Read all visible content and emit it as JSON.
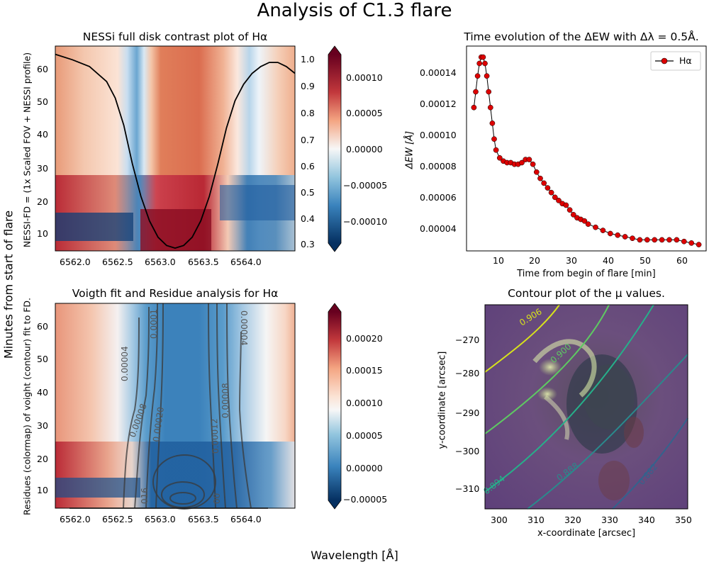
{
  "figure": {
    "suptitle": "Analysis of C1.3 flare",
    "shared_ylabel": "Minutes from start of flare",
    "shared_xlabel": "Wavelength [Å]"
  },
  "chart_data": [
    {
      "id": "contrast",
      "type": "heatmap",
      "title": "NESSi full disk contrast plot of Hα",
      "ylabel": "NESSI-FD = (1x Scaled FOV + NESSI profile)",
      "xlim": [
        6561.6,
        6564.4
      ],
      "ylim": [
        5,
        67
      ],
      "xticks": [
        "6562.0",
        "6562.5",
        "6563.0",
        "6563.5",
        "6564.0"
      ],
      "yticks": [
        "10",
        "20",
        "30",
        "40",
        "50",
        "60"
      ],
      "colormap": "RdBu_r",
      "colorbar_ticks": [
        "0.00010",
        "0.00005",
        "0.00000",
        "−0.00005",
        "−0.00010"
      ],
      "colorbar_range": [
        -0.00013,
        0.00013
      ],
      "profile_axis_ticks": [
        "1.0",
        "0.9",
        "0.8",
        "0.7",
        "0.6",
        "0.5",
        "0.4",
        "0.3"
      ],
      "profile_axis_range": [
        0.28,
        1.03
      ],
      "profile_color": "#000000",
      "profile": {
        "x": [
          6561.6,
          6561.8,
          6562.0,
          6562.2,
          6562.3,
          6562.4,
          6562.5,
          6562.6,
          6562.7,
          6562.8,
          6562.9,
          6563.0,
          6563.1,
          6563.2,
          6563.3,
          6563.4,
          6563.5,
          6563.6,
          6563.7,
          6563.8,
          6563.9,
          6564.0,
          6564.1,
          6564.2,
          6564.3,
          6564.4
        ],
        "y": [
          1.0,
          0.98,
          0.955,
          0.9,
          0.84,
          0.74,
          0.6,
          0.48,
          0.39,
          0.33,
          0.3,
          0.29,
          0.3,
          0.33,
          0.39,
          0.48,
          0.6,
          0.73,
          0.83,
          0.89,
          0.93,
          0.955,
          0.97,
          0.97,
          0.955,
          0.93
        ]
      }
    },
    {
      "id": "ew",
      "type": "scatter",
      "title": "Time evolution of the ΔEW with Δλ = 0.5Å.",
      "xlabel": "Time from begin of flare [min]",
      "ylabel": "ΔEW [Å]",
      "xlim": [
        3,
        68
      ],
      "ylim": [
        2.7e-05,
        0.000157
      ],
      "xticks": [
        "10",
        "20",
        "30",
        "40",
        "50",
        "60"
      ],
      "yticks": [
        "0.00004",
        "0.00006",
        "0.00008",
        "0.00010",
        "0.00012",
        "0.00014"
      ],
      "legend": {
        "placement": "upper-right",
        "entries": [
          "Hα"
        ]
      },
      "marker_color": "#dd0000",
      "series": [
        {
          "name": "Hα",
          "x": [
            5,
            5.5,
            6,
            6.5,
            7,
            7.5,
            8,
            8.5,
            9,
            9.5,
            10,
            10.5,
            11,
            12,
            13,
            14,
            15,
            16,
            17,
            18,
            19,
            20,
            21,
            22,
            23,
            24,
            25,
            26,
            27,
            28,
            29,
            30,
            31,
            32,
            33,
            34,
            35,
            36,
            38,
            40,
            42,
            44,
            46,
            48,
            50,
            52,
            54,
            56,
            58,
            60,
            62,
            64,
            66
          ],
          "y": [
            0.000118,
            0.000128,
            0.000138,
            0.000146,
            0.00015,
            0.00015,
            0.000146,
            0.000138,
            0.000128,
            0.000118,
            0.000108,
            9.8e-05,
            9.1e-05,
            8.6e-05,
            8.4e-05,
            8.3e-05,
            8.3e-05,
            8.2e-05,
            8.2e-05,
            8.3e-05,
            8.5e-05,
            8.5e-05,
            8.2e-05,
            7.7e-05,
            7.3e-05,
            7e-05,
            6.7e-05,
            6.4e-05,
            6.1e-05,
            5.9e-05,
            5.7e-05,
            5.6e-05,
            5.3e-05,
            5e-05,
            4.8e-05,
            4.7e-05,
            4.6e-05,
            4.4e-05,
            4.2e-05,
            4e-05,
            3.8e-05,
            3.7e-05,
            3.6e-05,
            3.5e-05,
            3.4e-05,
            3.4e-05,
            3.4e-05,
            3.4e-05,
            3.4e-05,
            3.4e-05,
            3.3e-05,
            3.2e-05,
            3.1e-05
          ]
        }
      ]
    },
    {
      "id": "residue",
      "type": "heatmap",
      "title": "Voigth fit and Residue analysis for Hα",
      "ylabel": "Residues (colormap) of voight (contour) fit to FD.",
      "xlim": [
        6561.6,
        6564.4
      ],
      "ylim": [
        5,
        67
      ],
      "xticks": [
        "6562.0",
        "6562.5",
        "6563.0",
        "6563.5",
        "6564.0"
      ],
      "yticks": [
        "10",
        "20",
        "30",
        "40",
        "50",
        "60"
      ],
      "colormap": "RdBu_r",
      "colorbar_ticks": [
        "0.00020",
        "0.00015",
        "0.00010",
        "0.00005",
        "0.00000",
        "−0.00005"
      ],
      "colorbar_range": [
        -6e-05,
        0.00024
      ],
      "contour_labels": [
        "0.00004",
        "0.00008",
        "0.0001",
        "0.00020",
        "0.00012",
        "0.00008",
        "0.00004",
        "016",
        "00"
      ]
    },
    {
      "id": "mu",
      "type": "contour",
      "title": "Contour plot of the μ values.",
      "xlabel": "x-coordinate [arcsec]",
      "ylabel": "y-coordinate [arcsec]",
      "xlim": [
        296,
        351
      ],
      "ylim": [
        -316,
        -263
      ],
      "xticks": [
        "300",
        "310",
        "320",
        "330",
        "340",
        "350"
      ],
      "yticks": [
        "−270",
        "−280",
        "−290",
        "−300",
        "−310"
      ],
      "contour_labels": [
        "0.906",
        "0.900",
        "0.894",
        "0.888",
        "0.882"
      ],
      "contour_colors": [
        "#d7e21c",
        "#5ec962",
        "#26b08a",
        "#2a8a8c",
        "#33638d"
      ]
    }
  ]
}
